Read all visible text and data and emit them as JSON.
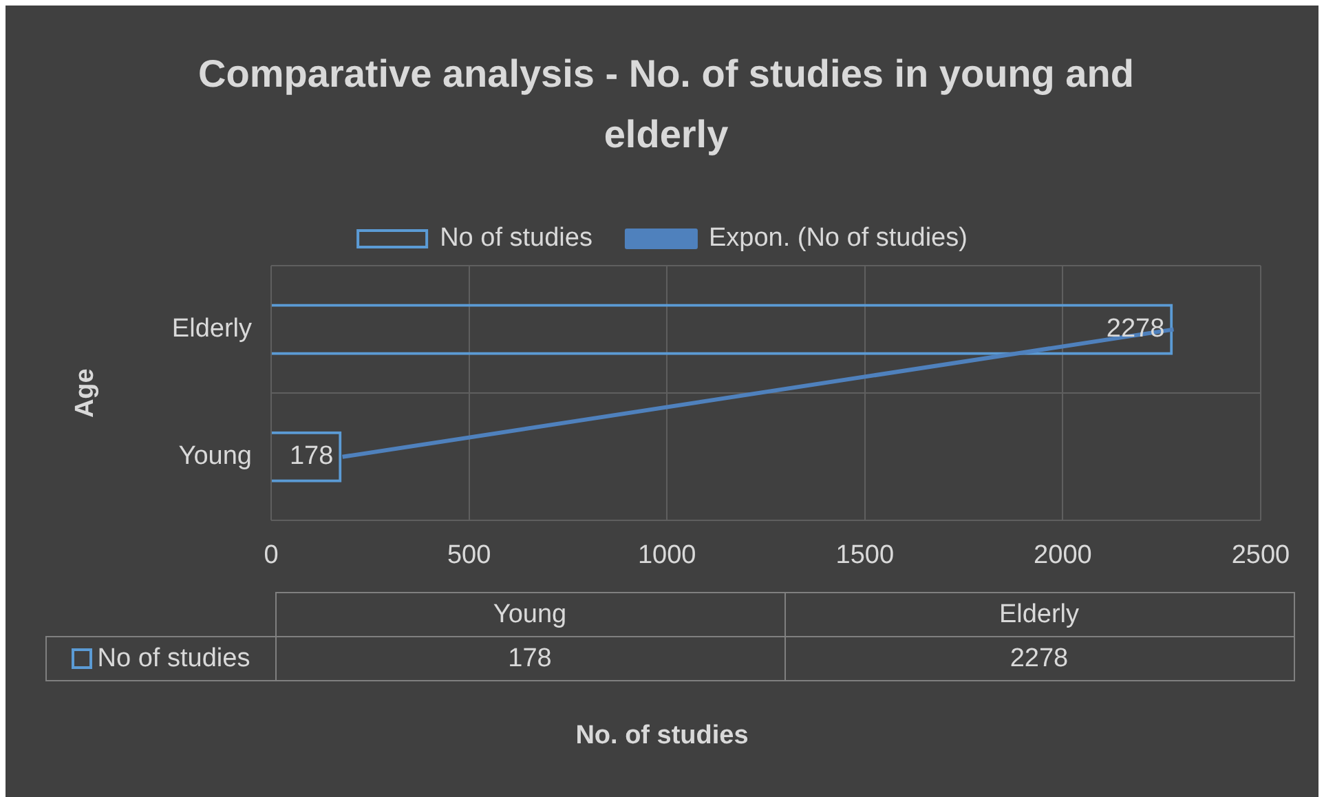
{
  "chart_data": {
    "type": "bar",
    "orientation": "horizontal",
    "title": "Comparative analysis - No. of studies in young and elderly",
    "annotations": [
      "No. of studies"
    ],
    "ylabel": "Age",
    "categories": [
      "Elderly",
      "Young"
    ],
    "series": [
      {
        "name": "No of studies",
        "color": "#5b9bd5",
        "values": [
          2278,
          178
        ],
        "value_labels": [
          "2278",
          "178"
        ]
      },
      {
        "name": "Expon. (No of studies)",
        "type": "line",
        "color": "#4f81bd",
        "values": [
          2280,
          180
        ]
      }
    ],
    "xlim": [
      0,
      2500
    ],
    "xticks": [
      0,
      500,
      1000,
      1500,
      2000,
      2500
    ],
    "grid": true,
    "legend": "top",
    "marker": "none"
  }
}
